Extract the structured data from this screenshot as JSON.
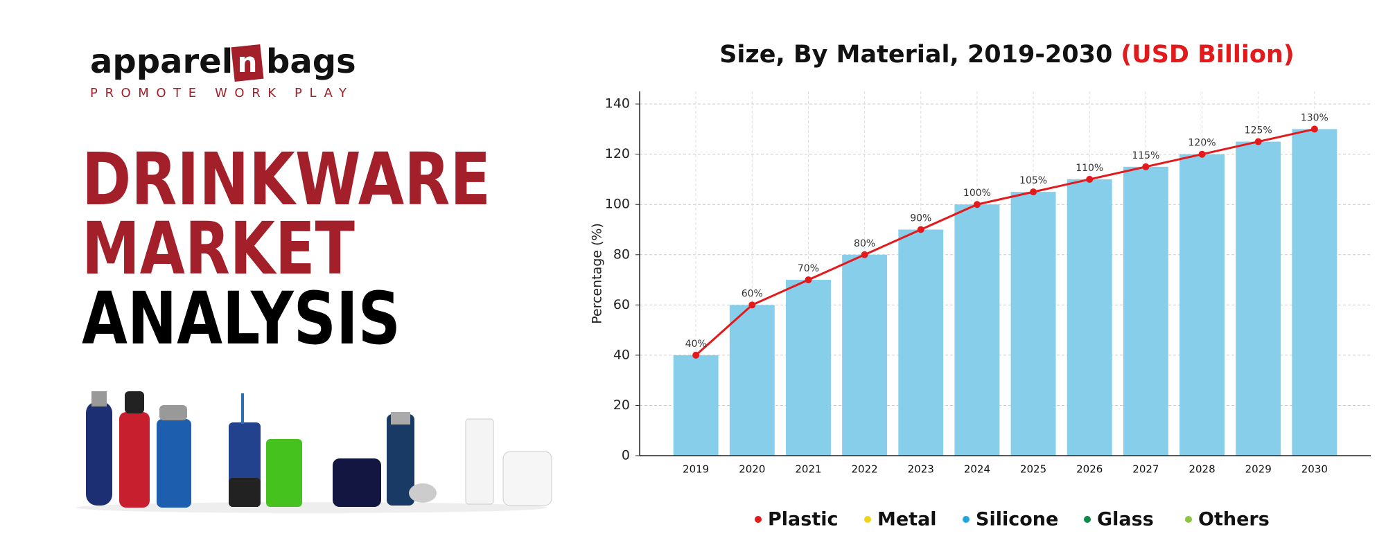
{
  "brand": {
    "logo_left": "apparel",
    "logo_mid": "n",
    "logo_right": "bags",
    "tagline": "PROMOTE WORK PLAY"
  },
  "headline": [
    "DRINKWARE",
    "MARKET",
    "ANALYSIS"
  ],
  "chart_data": {
    "type": "bar",
    "title": "Size, By Material, 2019-2030",
    "title_highlight": "(USD Billion)",
    "ylabel": "Percentage (%)",
    "categories": [
      "2019",
      "2020",
      "2021",
      "2022",
      "2023",
      "2024",
      "2025",
      "2026",
      "2027",
      "2028",
      "2029",
      "2030"
    ],
    "values": [
      40,
      60,
      70,
      80,
      90,
      100,
      105,
      110,
      115,
      120,
      125,
      130
    ],
    "value_labels": [
      "40%",
      "60%",
      "70%",
      "80%",
      "90%",
      "100%",
      "105%",
      "110%",
      "115%",
      "120%",
      "125%",
      "130%"
    ],
    "color": "#87ceeb",
    "line_color": "#e31a1c",
    "ylim": [
      0,
      145
    ],
    "yticks": [
      0,
      20,
      40,
      60,
      80,
      100,
      120,
      140
    ],
    "grid": true,
    "legend": [
      {
        "name": "Plastic",
        "color": "#e31a1c"
      },
      {
        "name": "Metal",
        "color": "#f2d21b"
      },
      {
        "name": "Silicone",
        "color": "#1fa6e0"
      },
      {
        "name": "Glass",
        "color": "#0a8a44"
      },
      {
        "name": "Others",
        "color": "#8cc63f"
      }
    ]
  }
}
